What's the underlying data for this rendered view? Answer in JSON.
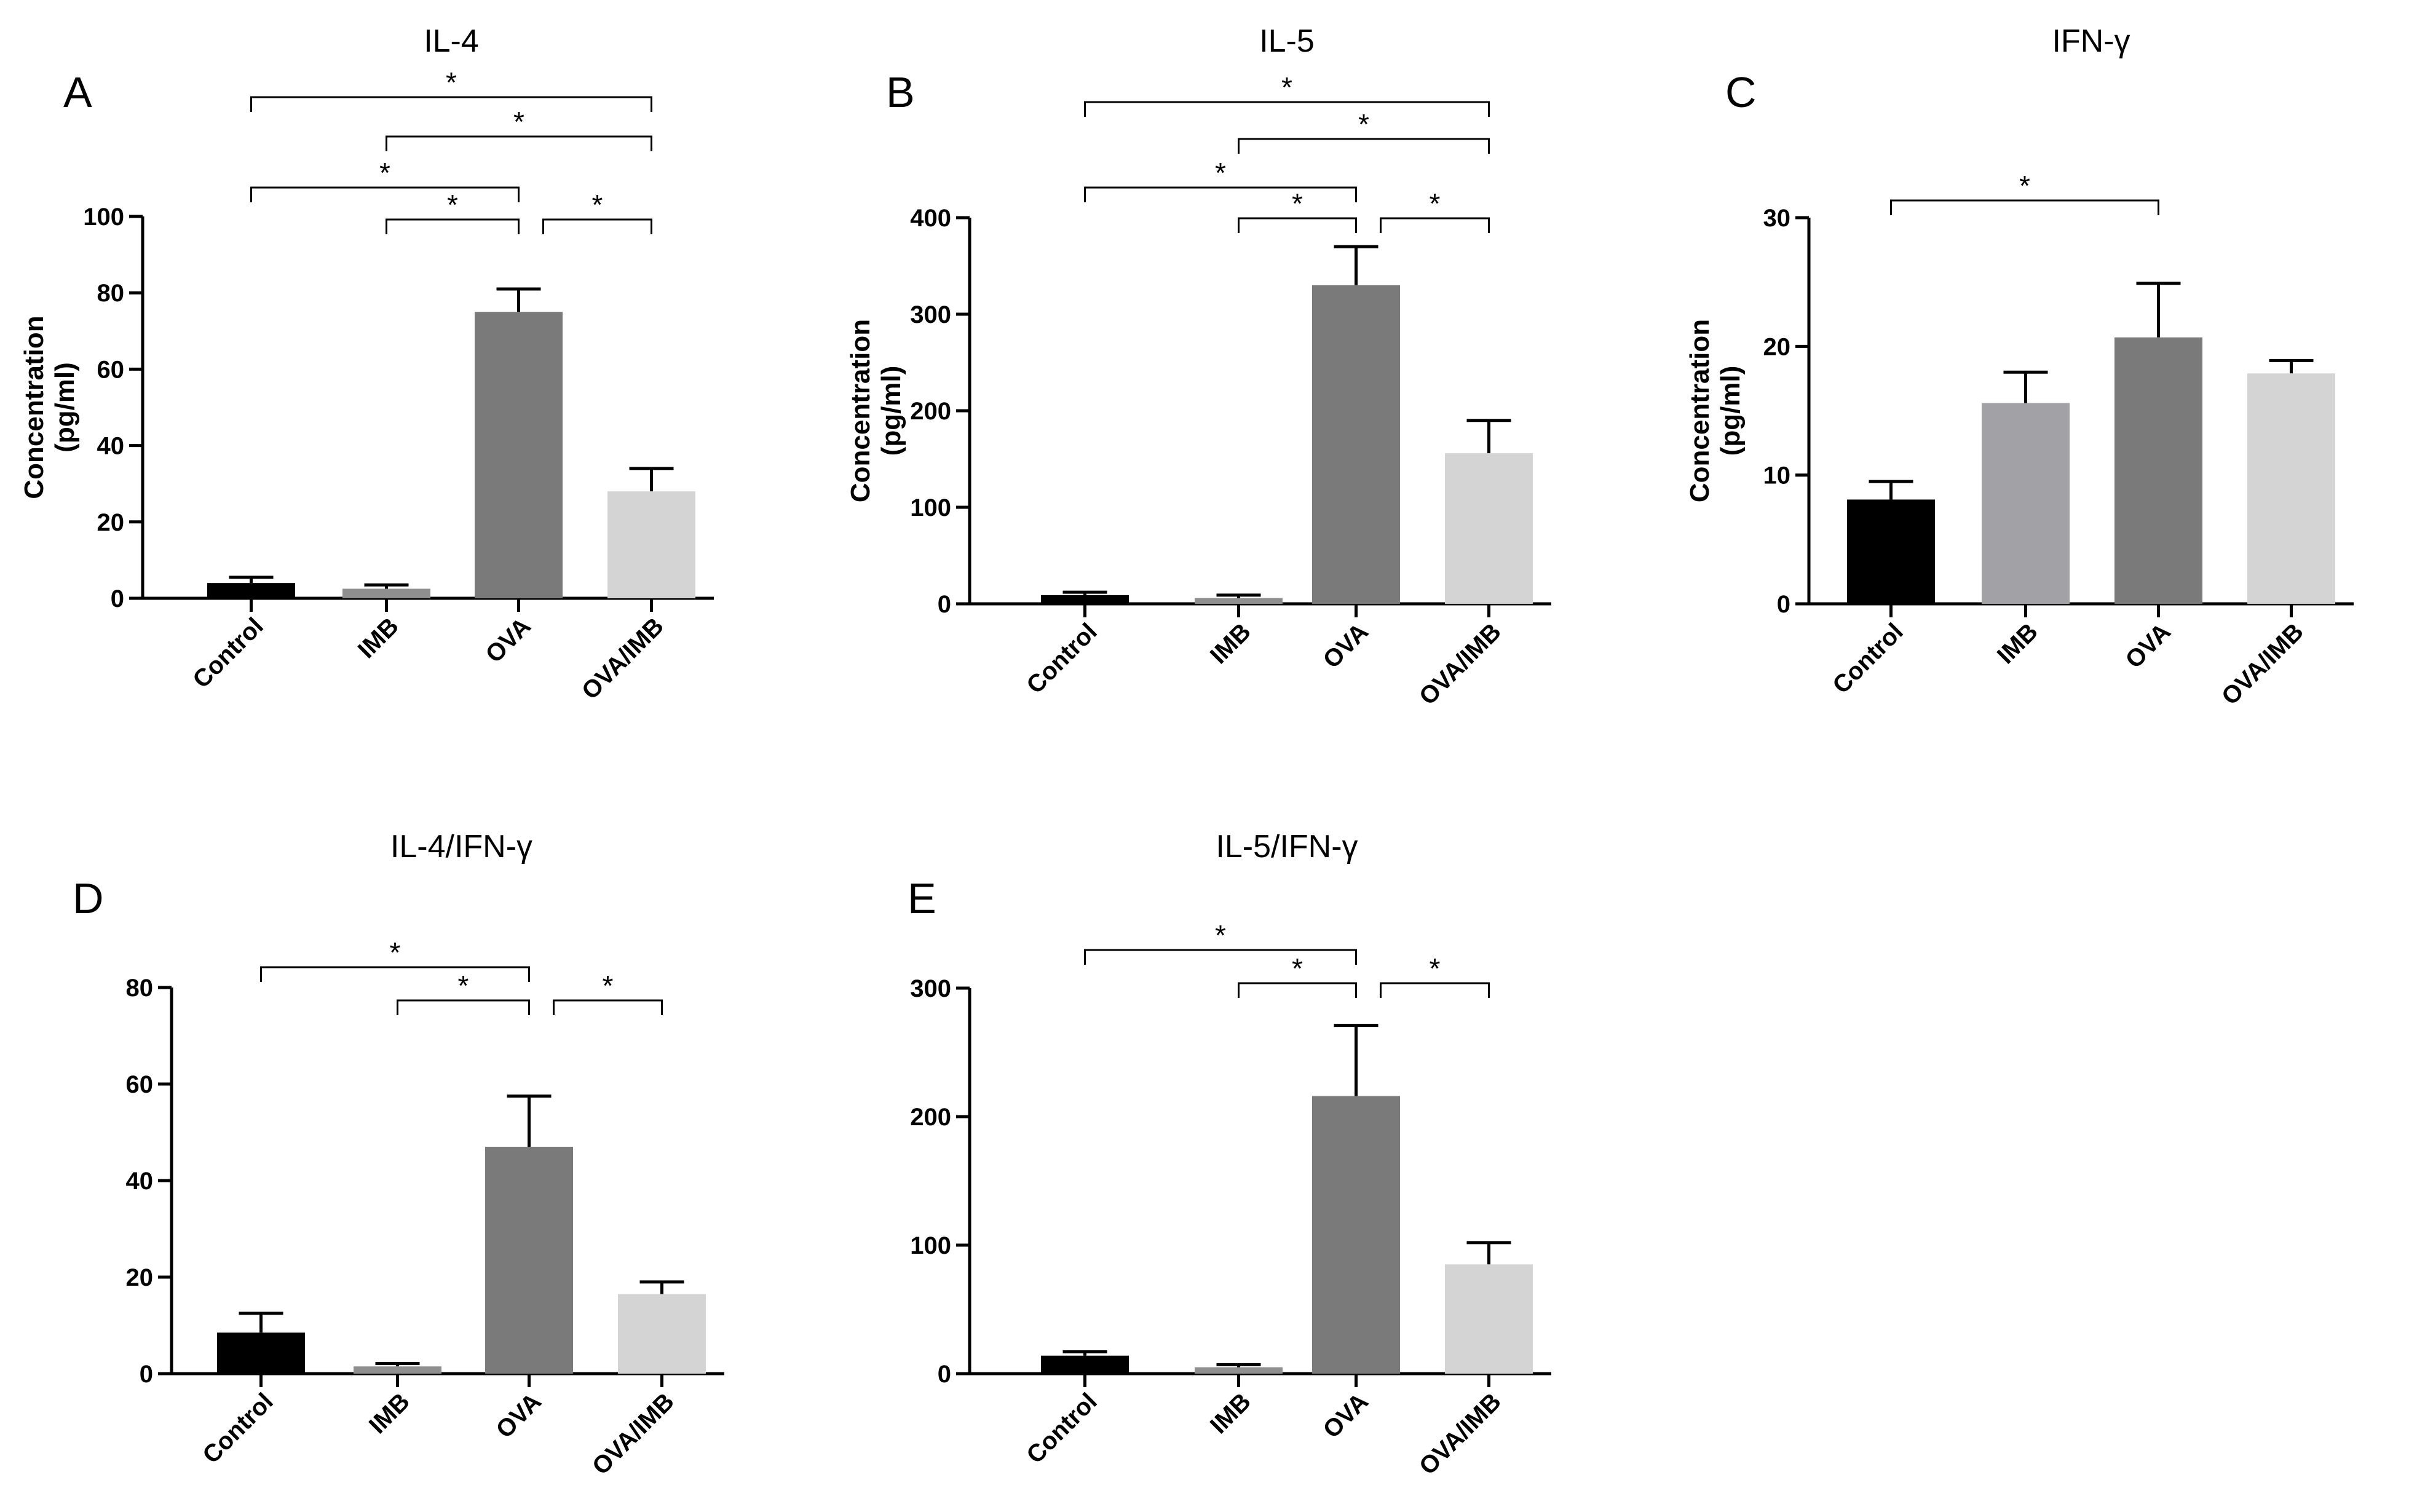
{
  "chart_data": [
    {
      "panel": "A",
      "type": "bar",
      "title": "IL-4",
      "ylabel_line1": "Concentration",
      "ylabel_line2": "(pg/ml)",
      "ylim": [
        0,
        100
      ],
      "yticks": [
        0,
        20,
        40,
        60,
        80,
        100
      ],
      "categories": [
        "Control",
        "IMB",
        "OVA",
        "OVA/IMB"
      ],
      "values": [
        4,
        2.5,
        75,
        28
      ],
      "errors": [
        1.5,
        1,
        6,
        6
      ],
      "colors": [
        "#000000",
        "#8f8f8f",
        "#7a7a7a",
        "#d4d4d4"
      ],
      "significance": [
        {
          "from": 0,
          "to": 3,
          "label": "*"
        },
        {
          "from": 1,
          "to": 3,
          "label": "*"
        },
        {
          "from": 0,
          "to": 2,
          "label": "*"
        },
        {
          "from": 1,
          "to": 2,
          "label": "*"
        },
        {
          "from": 2,
          "to": 3,
          "label": "*"
        }
      ]
    },
    {
      "panel": "B",
      "type": "bar",
      "title": "IL-5",
      "ylabel_line1": "Concentration",
      "ylabel_line2": "(pg/ml)",
      "ylim": [
        0,
        400
      ],
      "yticks": [
        0,
        100,
        200,
        300,
        400
      ],
      "categories": [
        "Control",
        "IMB",
        "OVA",
        "OVA/IMB"
      ],
      "values": [
        9,
        6,
        330,
        156
      ],
      "errors": [
        3,
        3,
        40,
        34
      ],
      "colors": [
        "#000000",
        "#8f8f8f",
        "#7a7a7a",
        "#d4d4d4"
      ],
      "significance": [
        {
          "from": 0,
          "to": 3,
          "label": "*"
        },
        {
          "from": 1,
          "to": 3,
          "label": "*"
        },
        {
          "from": 0,
          "to": 2,
          "label": "*"
        },
        {
          "from": 1,
          "to": 2,
          "label": "*"
        },
        {
          "from": 2,
          "to": 3,
          "label": "*"
        }
      ]
    },
    {
      "panel": "C",
      "type": "bar",
      "title": "IFN-γ",
      "ylabel_line1": "Concentration",
      "ylabel_line2": "(pg/ml)",
      "ylim": [
        0,
        30
      ],
      "yticks": [
        0,
        10,
        20,
        30
      ],
      "categories": [
        "Control",
        "IMB",
        "OVA",
        "OVA/IMB"
      ],
      "values": [
        8.1,
        15.6,
        20.7,
        17.9
      ],
      "errors": [
        1.4,
        2.4,
        4.2,
        1
      ],
      "colors": [
        "#000000",
        "#a1a1a6",
        "#7a7a7a",
        "#d4d4d4"
      ],
      "significance": [
        {
          "from": 0,
          "to": 2,
          "label": "*"
        }
      ]
    },
    {
      "panel": "D",
      "type": "bar",
      "title": "IL-4/IFN-γ",
      "ylabel_line1": "",
      "ylabel_line2": "",
      "ylim": [
        0,
        80
      ],
      "yticks": [
        0,
        20,
        40,
        60,
        80
      ],
      "categories": [
        "Control",
        "IMB",
        "OVA",
        "OVA/IMB"
      ],
      "values": [
        8.5,
        1.5,
        47,
        16.5
      ],
      "errors": [
        4,
        0.6,
        10.5,
        2.5
      ],
      "colors": [
        "#000000",
        "#8f8f8f",
        "#7a7a7a",
        "#d4d4d4"
      ],
      "significance": [
        {
          "from": 0,
          "to": 2,
          "label": "*"
        },
        {
          "from": 1,
          "to": 2,
          "label": "*"
        },
        {
          "from": 2,
          "to": 3,
          "label": "*"
        }
      ]
    },
    {
      "panel": "E",
      "type": "bar",
      "title": "IL-5/IFN-γ",
      "ylabel_line1": "",
      "ylabel_line2": "",
      "ylim": [
        0,
        300
      ],
      "yticks": [
        0,
        100,
        200,
        300
      ],
      "categories": [
        "Control",
        "IMB",
        "OVA",
        "OVA/IMB"
      ],
      "values": [
        14,
        5,
        216,
        85
      ],
      "errors": [
        3,
        2,
        55,
        17
      ],
      "colors": [
        "#000000",
        "#8f8f8f",
        "#7a7a7a",
        "#d4d4d4"
      ],
      "significance": [
        {
          "from": 0,
          "to": 2,
          "label": "*"
        },
        {
          "from": 1,
          "to": 2,
          "label": "*"
        },
        {
          "from": 2,
          "to": 3,
          "label": "*"
        }
      ]
    }
  ]
}
